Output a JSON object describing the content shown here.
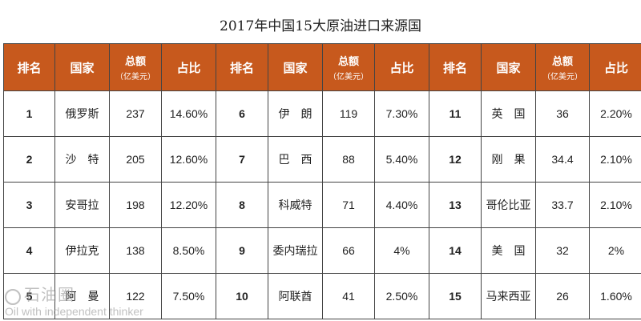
{
  "title": "2017年中国15大原油进口来源国",
  "headers": {
    "rank": "排名",
    "country": "国家",
    "amount": "总额",
    "amount_unit": "（亿美元）",
    "share": "占比"
  },
  "rows": [
    [
      {
        "rank": "1",
        "country": "俄罗斯",
        "amount": "237",
        "share": "14.60%"
      },
      {
        "rank": "6",
        "country": "伊　朗",
        "amount": "119",
        "share": "7.30%"
      },
      {
        "rank": "11",
        "country": "英　国",
        "amount": "36",
        "share": "2.20%"
      }
    ],
    [
      {
        "rank": "2",
        "country": "沙　特",
        "amount": "205",
        "share": "12.60%"
      },
      {
        "rank": "7",
        "country": "巴　西",
        "amount": "88",
        "share": "5.40%"
      },
      {
        "rank": "12",
        "country": "刚　果",
        "amount": "34.4",
        "share": "2.10%"
      }
    ],
    [
      {
        "rank": "3",
        "country": "安哥拉",
        "amount": "198",
        "share": "12.20%"
      },
      {
        "rank": "8",
        "country": "科威特",
        "amount": "71",
        "share": "4.40%"
      },
      {
        "rank": "13",
        "country": "哥伦比亚",
        "amount": "33.7",
        "share": "2.10%"
      }
    ],
    [
      {
        "rank": "4",
        "country": "伊拉克",
        "amount": "138",
        "share": "8.50%"
      },
      {
        "rank": "9",
        "country": "委内瑞拉",
        "amount": "66",
        "share": "4%"
      },
      {
        "rank": "14",
        "country": "美　国",
        "amount": "32",
        "share": "2%"
      }
    ],
    [
      {
        "rank": "5",
        "country": "阿　曼",
        "amount": "122",
        "share": "7.50%"
      },
      {
        "rank": "10",
        "country": "阿联酋",
        "amount": "41",
        "share": "2.50%"
      },
      {
        "rank": "15",
        "country": "马来西亚",
        "amount": "26",
        "share": "1.60%"
      }
    ]
  ],
  "watermark": {
    "cn": "石油圈",
    "en": "Oil with independent thinker"
  }
}
